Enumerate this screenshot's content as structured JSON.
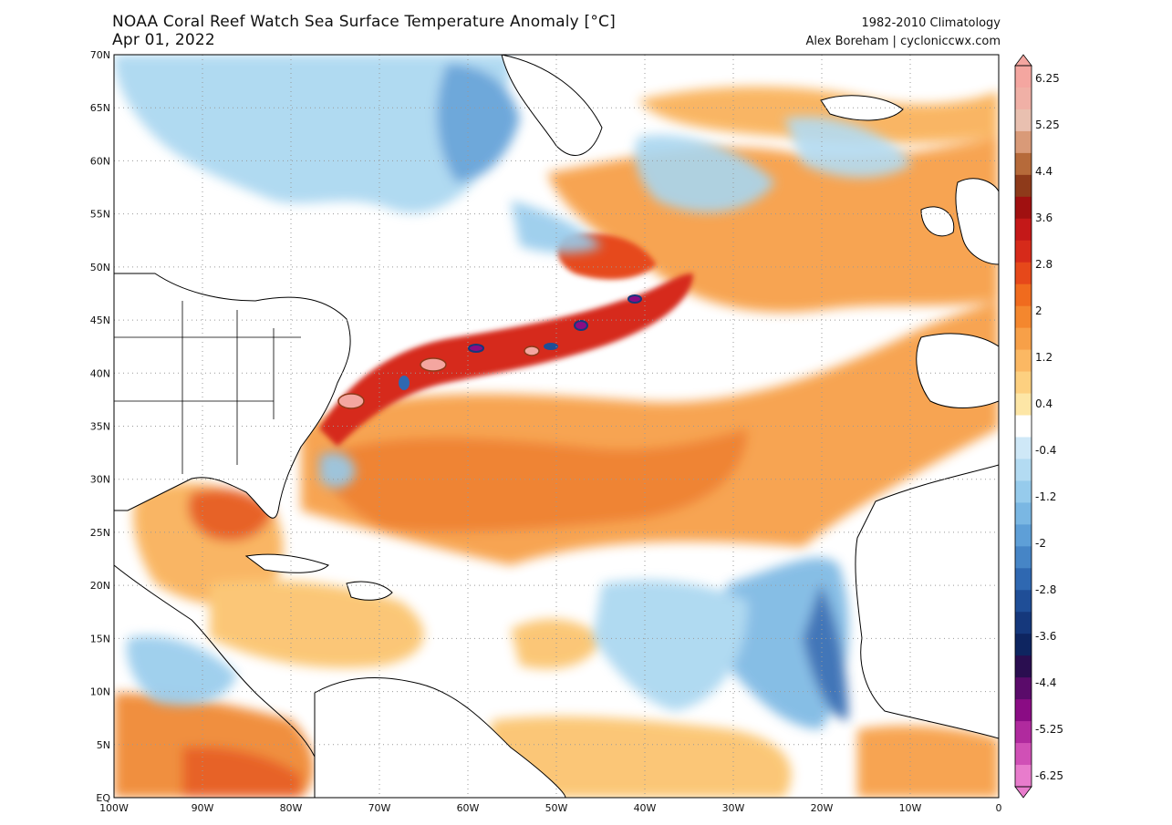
{
  "header": {
    "title": "NOAA Coral Reef Watch Sea Surface Temperature Anomaly [°C]",
    "date": "Apr 01, 2022",
    "climatology": "1982-2010 Climatology",
    "credit": "Alex Boreham | cycloniccwx.com"
  },
  "map": {
    "lon_range": [
      -100,
      0
    ],
    "lat_range": [
      0,
      70
    ],
    "lon_labels": [
      "100W",
      "90W",
      "80W",
      "70W",
      "60W",
      "50W",
      "40W",
      "30W",
      "20W",
      "10W",
      "0"
    ],
    "lat_labels": [
      "EQ",
      "5N",
      "10N",
      "15N",
      "20N",
      "25N",
      "30N",
      "35N",
      "40N",
      "45N",
      "50N",
      "55N",
      "60N",
      "65N",
      "70N"
    ]
  },
  "colorbar": {
    "unit": "°C",
    "labels": [
      "6.25",
      "5.25",
      "4.4",
      "3.6",
      "2.8",
      "2",
      "1.2",
      "0.4",
      "-0.4",
      "-1.2",
      "-2",
      "-2.8",
      "-3.6",
      "-4.4",
      "-5.25",
      "-6.25"
    ],
    "colors": {
      "pos_high": [
        "#f4a6a0",
        "#f0b0a6",
        "#e9c0b0",
        "#d99a78",
        "#b66a3a",
        "#8e3a1a",
        "#a01010",
        "#c41818",
        "#d62a1a",
        "#e6481a",
        "#f06b1e",
        "#f4872e",
        "#f7a048",
        "#fbb863",
        "#fdd080",
        "#fde6a6"
      ],
      "neutral": "#ffffff",
      "neg_low": [
        "#cfe8f7",
        "#b3dbf2",
        "#96cbec",
        "#7ab7e3",
        "#5e9fd7",
        "#4685c6",
        "#2f68b1",
        "#1f4e97",
        "#15387c",
        "#0e2560",
        "#2a0e50",
        "#5a0b6a",
        "#8a0c84",
        "#b02a9e",
        "#d050b6",
        "#e87ccc"
      ]
    }
  }
}
